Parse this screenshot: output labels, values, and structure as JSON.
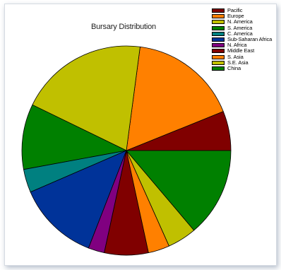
{
  "chart_data": {
    "type": "pie",
    "title": "Bursary Distribution",
    "legend_position": "top-right",
    "slices": [
      {
        "label": "Pacific",
        "value": 6.1,
        "color": "#800000"
      },
      {
        "label": "Europe",
        "value": 16.8,
        "color": "#ff8000"
      },
      {
        "label": "N. America",
        "value": 19.9,
        "color": "#c0c000"
      },
      {
        "label": "S. America",
        "value": 10.1,
        "color": "#008000"
      },
      {
        "label": "C. America",
        "value": 3.6,
        "color": "#008080"
      },
      {
        "label": "Sub-Saharan Africa",
        "value": 12.6,
        "color": "#003399"
      },
      {
        "label": "N. Africa",
        "value": 2.5,
        "color": "#800080"
      },
      {
        "label": "Middle East",
        "value": 6.8,
        "color": "#800000"
      },
      {
        "label": "S. Asia",
        "value": 3.3,
        "color": "#ff8000"
      },
      {
        "label": "S.E. Asia",
        "value": 4.5,
        "color": "#c0c000"
      },
      {
        "label": "China",
        "value": 13.8,
        "color": "#008000"
      }
    ]
  }
}
